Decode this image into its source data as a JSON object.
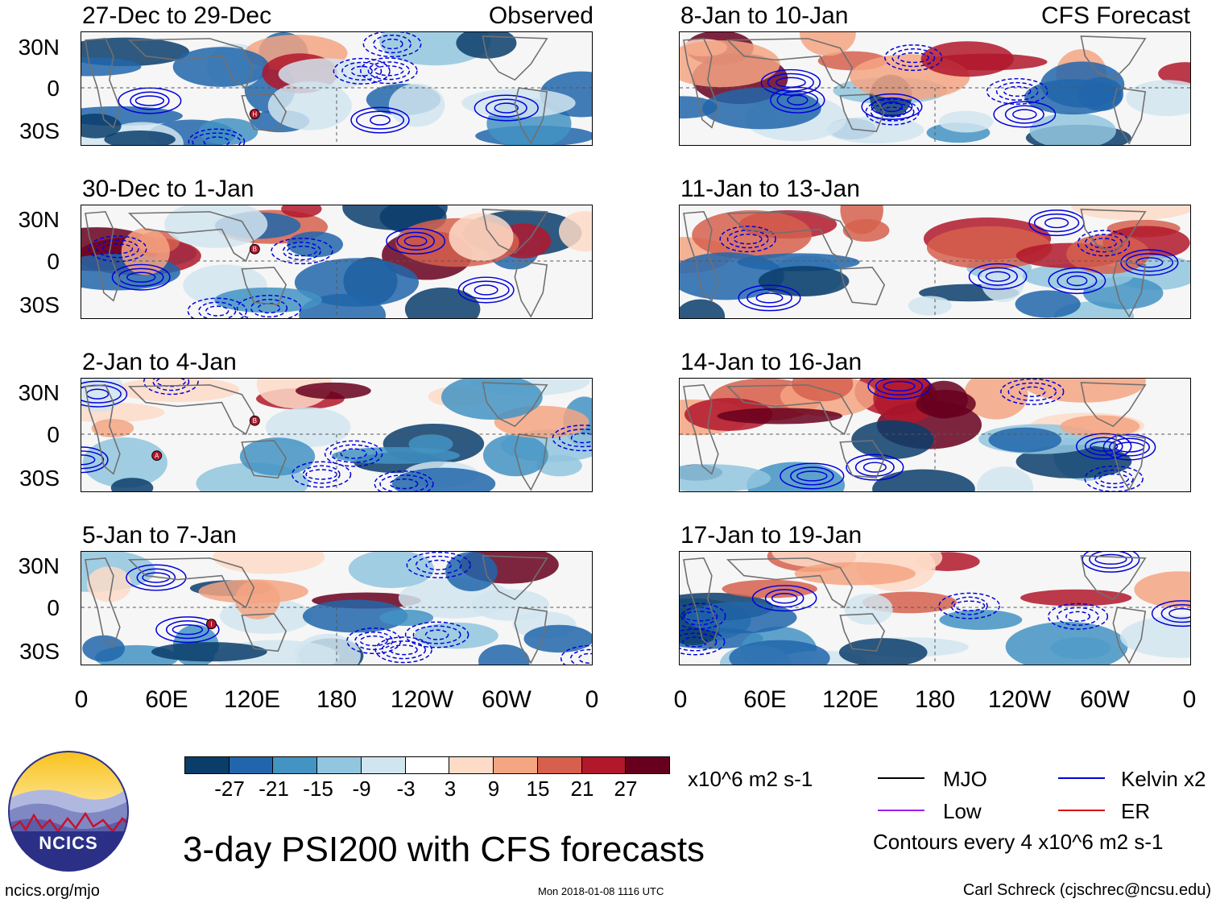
{
  "figure_title": "3-day PSI200 with CFS forecasts",
  "observed_label": "Observed",
  "forecast_label": "CFS Forecast",
  "panels": {
    "observed": [
      "27-Dec to 29-Dec",
      "30-Dec to 1-Jan",
      "2-Jan to 4-Jan",
      "5-Jan to 7-Jan"
    ],
    "forecast": [
      "8-Jan to 10-Jan",
      "11-Jan to 13-Jan",
      "14-Jan to 16-Jan",
      "17-Jan to 19-Jan"
    ]
  },
  "lat_labels": [
    "30N",
    "0",
    "30S"
  ],
  "lon_labels": [
    "0",
    "60E",
    "120E",
    "180",
    "120W",
    "60W",
    "0"
  ],
  "colorbar": {
    "units": "x10^6 m2 s-1",
    "ticks": [
      "-27",
      "-21",
      "-15",
      "-9",
      "-3",
      "3",
      "9",
      "15",
      "21",
      "27"
    ],
    "colors": [
      "#0b3d6b",
      "#2166ac",
      "#4393c3",
      "#92c5de",
      "#d1e5f0",
      "#ffffff",
      "#fddbc7",
      "#f4a582",
      "#d6604d",
      "#b2182b",
      "#67001f"
    ]
  },
  "legend": {
    "items": [
      {
        "label": "MJO",
        "color": "#000000"
      },
      {
        "label": "Kelvin x2",
        "color": "#0000dd"
      },
      {
        "label": "Low",
        "color": "#a020f0"
      },
      {
        "label": "ER",
        "color": "#dd0000"
      }
    ],
    "note": "Contours every 4 x10^6 m2 s-1"
  },
  "logo_text": "NCICS",
  "footer": {
    "url": "ncics.org/mjo",
    "timestamp": "Mon 2018-01-08 1116 UTC",
    "author": "Carl Schreck (cjschrec@ncsu.edu)"
  },
  "storm_markers": {
    "panel_0": [
      "H"
    ],
    "panel_1": [
      "B"
    ],
    "panel_2": [
      "B",
      "A"
    ],
    "panel_3": [
      "I"
    ]
  }
}
